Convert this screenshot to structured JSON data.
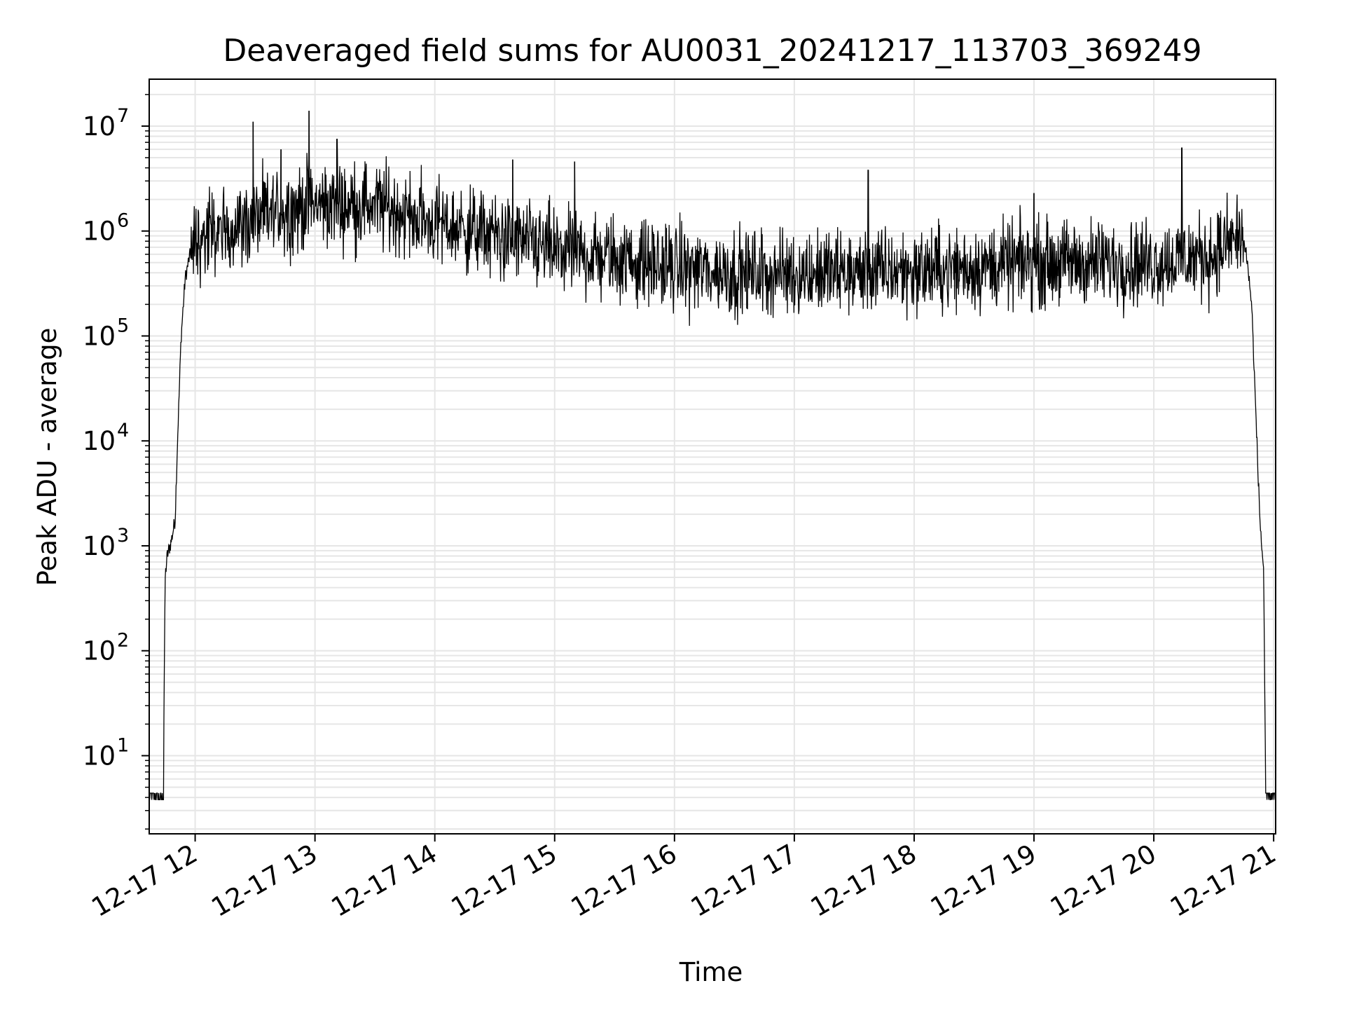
{
  "chart_data": {
    "type": "line",
    "title": "Deaveraged field sums for AU0031_20241217_113703_369249",
    "xlabel": "Time",
    "ylabel": "Peak ADU - average",
    "yscale": "log",
    "ylim": [
      1.8,
      28000000
    ],
    "xlim": [
      "2024-12-17 11:37",
      "2024-12-17 21:01"
    ],
    "grid": true,
    "colors": {
      "line": "#000000",
      "grid": "#e6e6e6"
    },
    "x_ticks": [
      {
        "label": "12-17 12",
        "value": "2024-12-17 12:00"
      },
      {
        "label": "12-17 13",
        "value": "2024-12-17 13:00"
      },
      {
        "label": "12-17 14",
        "value": "2024-12-17 14:00"
      },
      {
        "label": "12-17 15",
        "value": "2024-12-17 15:00"
      },
      {
        "label": "12-17 16",
        "value": "2024-12-17 16:00"
      },
      {
        "label": "12-17 17",
        "value": "2024-12-17 17:00"
      },
      {
        "label": "12-17 18",
        "value": "2024-12-17 18:00"
      },
      {
        "label": "12-17 19",
        "value": "2024-12-17 19:00"
      },
      {
        "label": "12-17 20",
        "value": "2024-12-17 20:00"
      },
      {
        "label": "12-17 21",
        "value": "2024-12-17 21:00"
      }
    ],
    "y_ticks": [
      {
        "base": "10",
        "exp": "1",
        "value": 10
      },
      {
        "base": "10",
        "exp": "2",
        "value": 100
      },
      {
        "base": "10",
        "exp": "3",
        "value": 1000
      },
      {
        "base": "10",
        "exp": "4",
        "value": 10000
      },
      {
        "base": "10",
        "exp": "5",
        "value": 100000
      },
      {
        "base": "10",
        "exp": "6",
        "value": 1000000
      },
      {
        "base": "10",
        "exp": "7",
        "value": 10000000
      }
    ],
    "series": [
      {
        "envelope": [
          [
            "2024-12-17 11:37",
            4
          ],
          [
            "2024-12-17 11:44",
            4
          ],
          [
            "2024-12-17 11:45",
            500
          ],
          [
            "2024-12-17 11:46",
            800
          ],
          [
            "2024-12-17 11:48",
            1100
          ],
          [
            "2024-12-17 11:50",
            1800
          ],
          [
            "2024-12-17 11:51",
            8000
          ],
          [
            "2024-12-17 11:53",
            100000
          ],
          [
            "2024-12-17 11:55",
            350000
          ],
          [
            "2024-12-17 11:57",
            550000
          ],
          [
            "2024-12-17 12:00",
            800000
          ],
          [
            "2024-12-17 12:20",
            1100000
          ],
          [
            "2024-12-17 12:40",
            1500000
          ],
          [
            "2024-12-17 13:00",
            1800000
          ],
          [
            "2024-12-17 13:30",
            1800000
          ],
          [
            "2024-12-17 14:00",
            1200000
          ],
          [
            "2024-12-17 14:30",
            900000
          ],
          [
            "2024-12-17 15:00",
            650000
          ],
          [
            "2024-12-17 15:30",
            550000
          ],
          [
            "2024-12-17 16:00",
            450000
          ],
          [
            "2024-12-17 16:30",
            400000
          ],
          [
            "2024-12-17 17:00",
            400000
          ],
          [
            "2024-12-17 17:30",
            400000
          ],
          [
            "2024-12-17 18:00",
            420000
          ],
          [
            "2024-12-17 18:30",
            450000
          ],
          [
            "2024-12-17 19:00",
            500000
          ],
          [
            "2024-12-17 19:30",
            500000
          ],
          [
            "2024-12-17 20:00",
            500000
          ],
          [
            "2024-12-17 20:30",
            600000
          ],
          [
            "2024-12-17 20:42",
            900000
          ],
          [
            "2024-12-17 20:46",
            700000
          ],
          [
            "2024-12-17 20:49",
            200000
          ],
          [
            "2024-12-17 20:51",
            20000
          ],
          [
            "2024-12-17 20:53",
            2000
          ],
          [
            "2024-12-17 20:54",
            1000
          ],
          [
            "2024-12-17 20:55",
            600
          ],
          [
            "2024-12-17 20:56",
            4
          ],
          [
            "2024-12-17 21:01",
            4
          ]
        ],
        "spikes": [
          [
            "2024-12-17 12:29",
            11000000
          ],
          [
            "2024-12-17 12:43",
            6000000
          ],
          [
            "2024-12-17 12:57",
            14000000
          ],
          [
            "2024-12-17 13:11",
            7500000
          ],
          [
            "2024-12-17 14:39",
            4800000
          ],
          [
            "2024-12-17 15:10",
            4600000
          ],
          [
            "2024-12-17 17:37",
            3800000
          ],
          [
            "2024-12-17 19:00",
            2300000
          ],
          [
            "2024-12-17 20:14",
            6200000
          ]
        ]
      }
    ]
  }
}
